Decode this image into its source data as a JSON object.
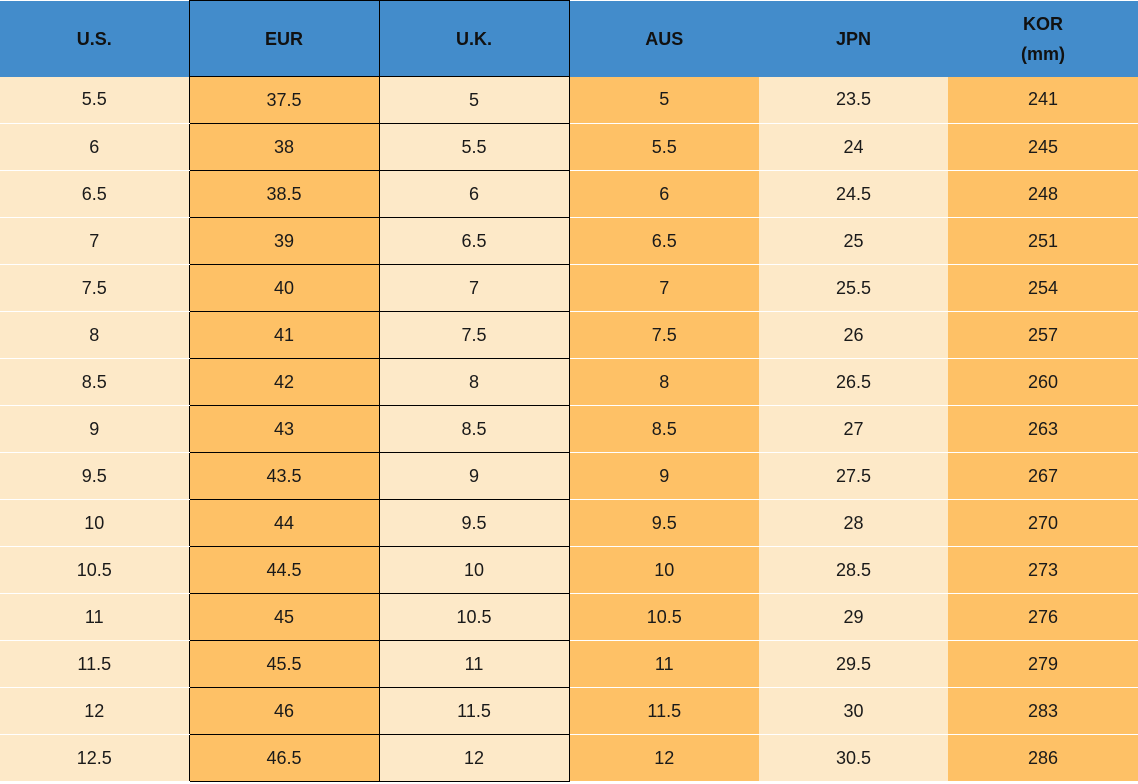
{
  "table": {
    "header": [
      "U.S.",
      "EUR",
      "U.K.",
      "AUS",
      "JPN",
      "KOR\n(mm)"
    ],
    "rows": [
      [
        "5.5",
        "37.5",
        "5",
        "5",
        "23.5",
        "241"
      ],
      [
        "6",
        "38",
        "5.5",
        "5.5",
        "24",
        "245"
      ],
      [
        "6.5",
        "38.5",
        "6",
        "6",
        "24.5",
        "248"
      ],
      [
        "7",
        "39",
        "6.5",
        "6.5",
        "25",
        "251"
      ],
      [
        "7.5",
        "40",
        "7",
        "7",
        "25.5",
        "254"
      ],
      [
        "8",
        "41",
        "7.5",
        "7.5",
        "26",
        "257"
      ],
      [
        "8.5",
        "42",
        "8",
        "8",
        "26.5",
        "260"
      ],
      [
        "9",
        "43",
        "8.5",
        "8.5",
        "27",
        "263"
      ],
      [
        "9.5",
        "43.5",
        "9",
        "9",
        "27.5",
        "267"
      ],
      [
        "10",
        "44",
        "9.5",
        "9.5",
        "28",
        "270"
      ],
      [
        "10.5",
        "44.5",
        "10",
        "10",
        "28.5",
        "273"
      ],
      [
        "11",
        "45",
        "10.5",
        "10.5",
        "29",
        "276"
      ],
      [
        "11.5",
        "45.5",
        "11",
        "11",
        "29.5",
        "279"
      ],
      [
        "12",
        "46",
        "11.5",
        "11.5",
        "30",
        "283"
      ],
      [
        "12.5",
        "46.5",
        "12",
        "12",
        "30.5",
        "286"
      ]
    ]
  }
}
